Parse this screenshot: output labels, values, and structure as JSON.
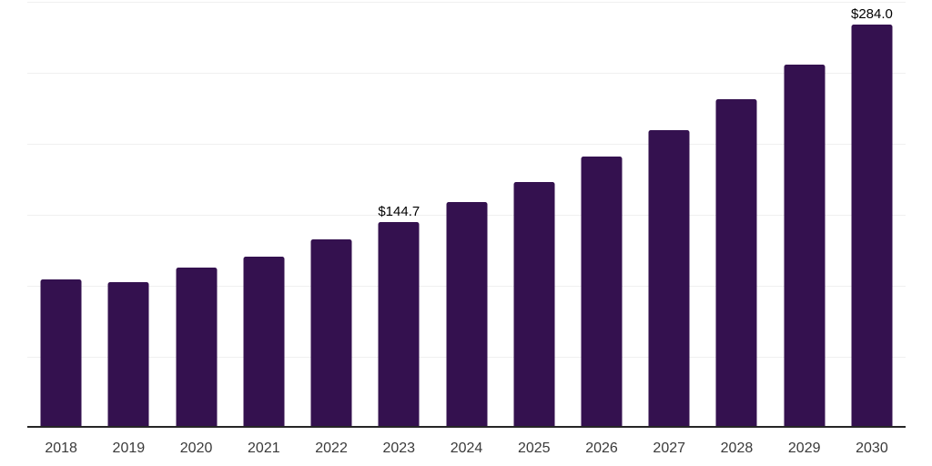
{
  "chart_data": {
    "type": "bar",
    "title": "",
    "xlabel": "",
    "ylabel": "",
    "categories": [
      "2018",
      "2019",
      "2020",
      "2021",
      "2022",
      "2023",
      "2024",
      "2025",
      "2026",
      "2027",
      "2028",
      "2029",
      "2030"
    ],
    "values": [
      104.2,
      102.6,
      112.8,
      120.5,
      132.7,
      144.7,
      159.0,
      173.1,
      190.8,
      209.4,
      231.2,
      256.0,
      284.0
    ],
    "bar_labels": [
      "",
      "",
      "",
      "",
      "",
      "$144.7",
      "",
      "",
      "",
      "",
      "",
      "",
      "$284.0"
    ],
    "value_prefix": "$",
    "ylim": [
      0,
      300
    ],
    "yticks": [
      0,
      50,
      100,
      150,
      200,
      250,
      300
    ],
    "y_axis_labels_visible": false,
    "grid": "horizontal",
    "legend": "none"
  },
  "style": {
    "background_color": "#ffffff",
    "bar_color": "#34114f",
    "gridline_color": "#f0f0f0",
    "axis_line_color": "#262626",
    "tick_label_color": "#3a3a3a",
    "value_label_color": "#000000"
  }
}
